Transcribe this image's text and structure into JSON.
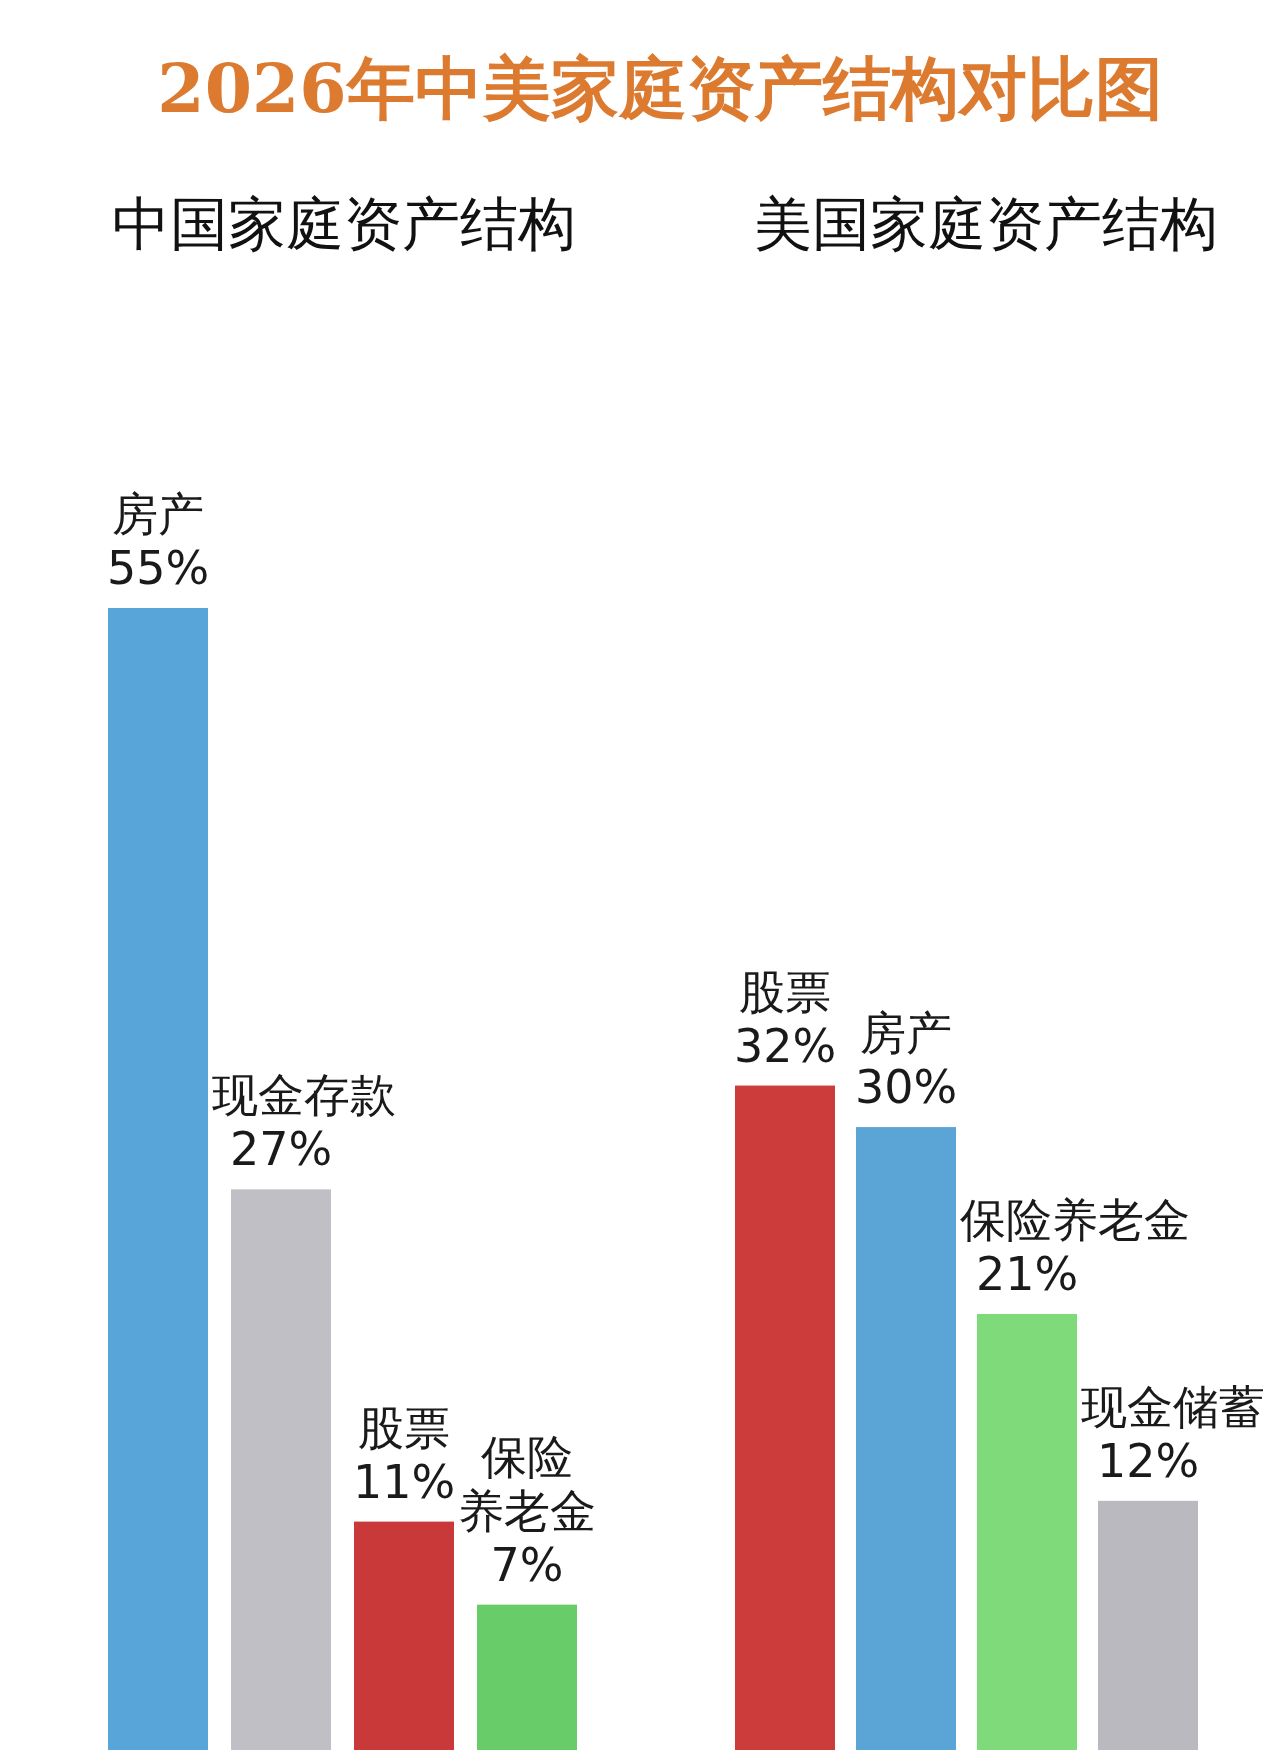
{
  "chart_data": [
    {
      "type": "bar",
      "title": "2026年中美家庭资产结构对比图",
      "subtitle": "中国家庭资产结构",
      "categories": [
        "房产",
        "现金存款",
        "股票",
        "保险养老金"
      ],
      "values": [
        55,
        27,
        11,
        7
      ],
      "value_labels": [
        "55%",
        "27%",
        "11%",
        "7%"
      ],
      "colors": [
        "#58a5da",
        "#bfbfc5",
        "#c9393a",
        "#68cc68"
      ]
    },
    {
      "type": "bar",
      "subtitle": "美国家庭资产结构",
      "categories": [
        "股票",
        "房产",
        "保险养老金",
        "现金储蓄"
      ],
      "values": [
        32,
        30,
        21,
        12
      ],
      "value_labels": [
        "32%",
        "30%",
        "21%",
        "12%"
      ],
      "colors": [
        "#cc3c3b",
        "#5aa4d6",
        "#7fdb7a",
        "#b9b9bf"
      ]
    }
  ]
}
